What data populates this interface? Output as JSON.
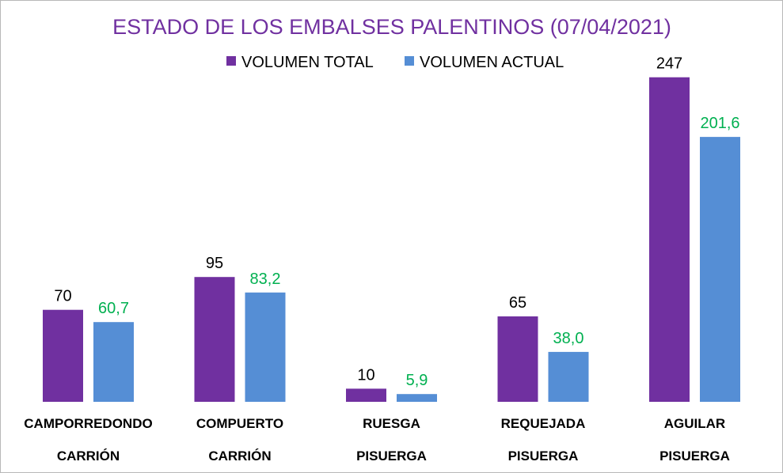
{
  "chart_data": {
    "type": "bar",
    "title": "ESTADO DE LOS EMBALSES PALENTINOS (07/04/2021)",
    "legend_position": "top",
    "categories": [
      "CAMPORREDONDO",
      "COMPUERTO",
      "RUESGA",
      "REQUEJADA",
      "AGUILAR"
    ],
    "sub_categories": [
      "CARRIÓN",
      "CARRIÓN",
      "PISUERGA",
      "PISUERGA",
      "PISUERGA"
    ],
    "series": [
      {
        "name": "VOLUMEN TOTAL",
        "color": "#7030a0",
        "label_color": "#000000",
        "values": [
          70,
          95,
          10,
          65,
          247
        ],
        "labels": [
          "70",
          "95",
          "10",
          "65",
          "247"
        ]
      },
      {
        "name": "VOLUMEN ACTUAL",
        "color": "#558ed5",
        "label_color": "#00b050",
        "values": [
          60.7,
          83.2,
          5.9,
          38.0,
          201.6
        ],
        "labels": [
          "60,7",
          "83,2",
          "5,9",
          "38,0",
          "201,6"
        ]
      }
    ],
    "title_color": "#7030a0",
    "ylim": [
      0,
      250
    ],
    "grid": false
  }
}
